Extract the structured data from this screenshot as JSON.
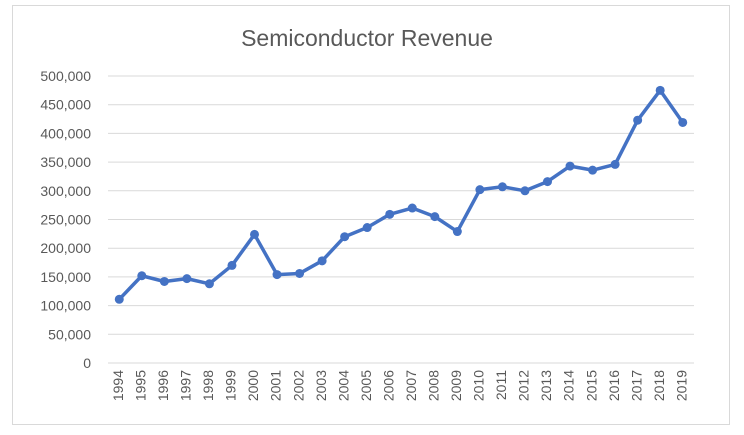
{
  "chart_data": {
    "type": "line",
    "title": "Semiconductor Revenue",
    "xlabel": "",
    "ylabel": "",
    "categories": [
      "1994",
      "1995",
      "1996",
      "1997",
      "1998",
      "1999",
      "2000",
      "2001",
      "2002",
      "2003",
      "2004",
      "2005",
      "2006",
      "2007",
      "2008",
      "2009",
      "2010",
      "2011",
      "2012",
      "2013",
      "2014",
      "2015",
      "2016",
      "2017",
      "2018",
      "2019"
    ],
    "series": [
      {
        "values": [
          111000,
          152000,
          142000,
          147000,
          138000,
          170000,
          224000,
          154000,
          156000,
          178000,
          220000,
          236000,
          259000,
          270000,
          255000,
          229000,
          302000,
          307000,
          300000,
          316000,
          343000,
          336000,
          346000,
          423000,
          475000,
          419000
        ]
      }
    ],
    "ylim": [
      0,
      500000
    ],
    "yticks": [
      "0",
      "50,000",
      "100,000",
      "150,000",
      "200,000",
      "250,000",
      "300,000",
      "350,000",
      "400,000",
      "450,000",
      "500,000"
    ],
    "grid": true,
    "legend": "none",
    "colors": {
      "line": "#4472C4",
      "grid": "#d9d9d9",
      "text": "#595959"
    }
  }
}
